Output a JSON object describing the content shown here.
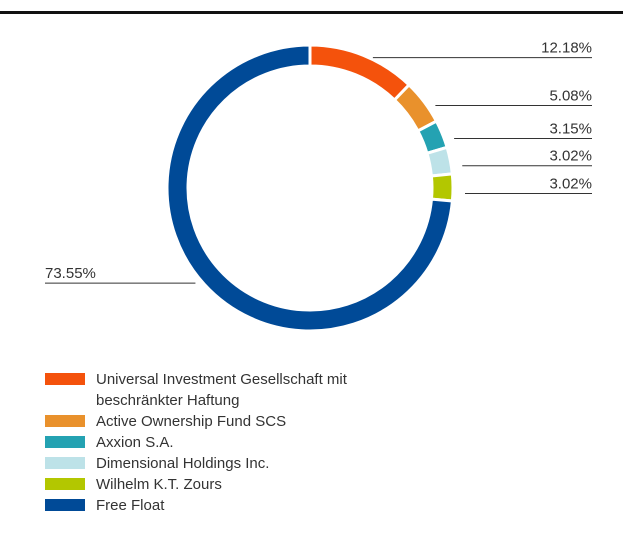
{
  "chart_data": {
    "type": "donut",
    "categories": [
      "Universal Investment Gesellschaft mit beschränkter Haftung",
      "Active Ownership Fund SCS",
      "Axxion S.A.",
      "Dimensional Holdings Inc.",
      "Wilhelm K.T. Zours",
      "Free Float"
    ],
    "values": [
      12.18,
      5.08,
      3.15,
      3.02,
      3.02,
      73.55
    ],
    "value_labels": [
      "12.18%",
      "5.08%",
      "3.15%",
      "3.02%",
      "3.02%",
      "73.55%"
    ],
    "colors": [
      "#f4520c",
      "#e9912c",
      "#24a2b2",
      "#bde2e8",
      "#b3c700",
      "#004a97"
    ],
    "legend": "bottom-left"
  }
}
